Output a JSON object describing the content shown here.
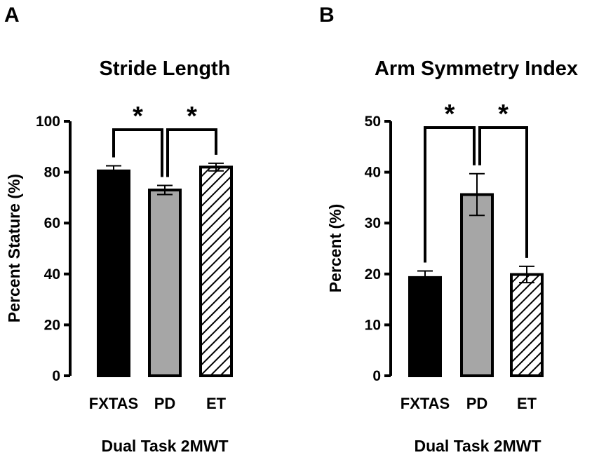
{
  "chart_data": [
    {
      "panel": "A",
      "type": "bar",
      "title": "Stride Length",
      "ylabel": "Percent Stature (%)",
      "xlabel": "Dual Task 2MWT",
      "ylim": [
        0,
        100
      ],
      "yticks": [
        0,
        20,
        40,
        60,
        80,
        100
      ],
      "categories": [
        "FXTAS",
        "PD",
        "ET"
      ],
      "values": [
        80.5,
        73,
        82
      ],
      "errors": [
        2,
        1.8,
        1.5
      ],
      "fills": [
        "solid-black",
        "solid-gray",
        "hatched"
      ],
      "significance": [
        {
          "from": 0,
          "to": 1,
          "label": "*"
        },
        {
          "from": 1,
          "to": 2,
          "label": "*"
        }
      ]
    },
    {
      "panel": "B",
      "type": "bar",
      "title": "Arm Symmetry Index",
      "ylabel": "Percent (%)",
      "xlabel": "Dual Task 2MWT",
      "ylim": [
        0,
        50
      ],
      "yticks": [
        0,
        10,
        20,
        30,
        40,
        50
      ],
      "categories": [
        "FXTAS",
        "PD",
        "ET"
      ],
      "values": [
        19.3,
        35.6,
        19.9
      ],
      "errors": [
        1.3,
        4.1,
        1.6
      ],
      "fills": [
        "solid-black",
        "solid-gray",
        "hatched"
      ],
      "significance": [
        {
          "from": 0,
          "to": 1,
          "label": "*"
        },
        {
          "from": 1,
          "to": 2,
          "label": "*"
        }
      ]
    }
  ],
  "colors": {
    "black": "#000000",
    "gray": "#a6a6a6",
    "white": "#ffffff"
  }
}
